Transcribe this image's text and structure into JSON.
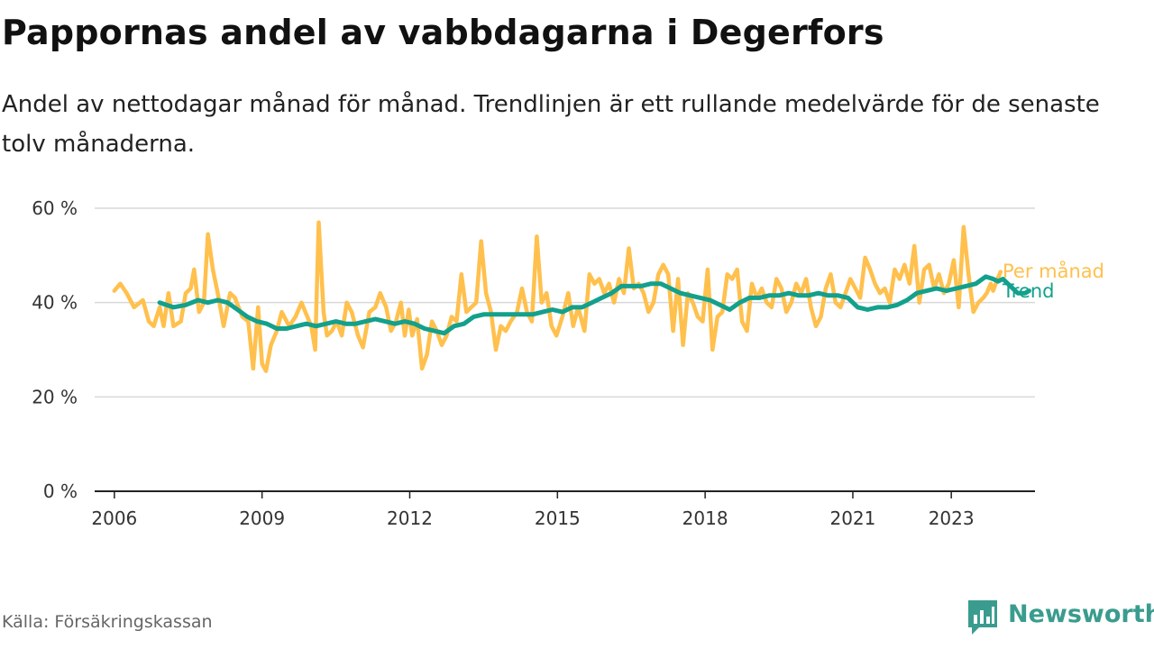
{
  "title": "Pappornas andel av vabbdagarna i Degerfors",
  "subtitle": "Andel av nettodagar månad för månad. Trendlinjen är ett rullande medelvärde för de senaste tolv månaderna.",
  "source": "Källa: Försäkringskassan",
  "brand": "Newsworthy",
  "colors": {
    "monthly": "#ffc04d",
    "trend": "#13a08c",
    "brand": "#3a9c8e",
    "grid": "#d8d8d8",
    "axis": "#222222"
  },
  "chart_data": {
    "type": "line",
    "x_unit": "year",
    "xlim": [
      2005.6,
      2024.7
    ],
    "ylim": [
      0,
      60
    ],
    "y_ticks": [
      0,
      20,
      40,
      60
    ],
    "y_tick_labels": [
      "0 %",
      "20 %",
      "40 %",
      "60 %"
    ],
    "x_ticks": [
      2006,
      2009,
      2012,
      2015,
      2018,
      2021,
      2023
    ],
    "x_tick_labels": [
      "2006",
      "2009",
      "2012",
      "2015",
      "2018",
      "2021",
      "2023"
    ],
    "grid": "horizontal",
    "legend": "labels at line ends (right)",
    "series": [
      {
        "name": "Per månad",
        "color": "#ffc04d",
        "points": [
          [
            2006.0,
            42.5
          ],
          [
            2006.12,
            44.0
          ],
          [
            2006.25,
            42.0
          ],
          [
            2006.4,
            39.0
          ],
          [
            2006.58,
            40.5
          ],
          [
            2006.7,
            36.0
          ],
          [
            2006.8,
            35.0
          ],
          [
            2006.92,
            39.0
          ],
          [
            2007.0,
            35.0
          ],
          [
            2007.1,
            42.0
          ],
          [
            2007.2,
            35.0
          ],
          [
            2007.35,
            36.0
          ],
          [
            2007.45,
            42.0
          ],
          [
            2007.55,
            43.0
          ],
          [
            2007.62,
            47.0
          ],
          [
            2007.72,
            38.0
          ],
          [
            2007.82,
            40.0
          ],
          [
            2007.9,
            54.5
          ],
          [
            2008.0,
            47.0
          ],
          [
            2008.1,
            42.0
          ],
          [
            2008.22,
            35.0
          ],
          [
            2008.35,
            42.0
          ],
          [
            2008.45,
            41.0
          ],
          [
            2008.6,
            37.0
          ],
          [
            2008.72,
            36.0
          ],
          [
            2008.82,
            26.0
          ],
          [
            2008.92,
            39.0
          ],
          [
            2009.0,
            27.0
          ],
          [
            2009.08,
            25.5
          ],
          [
            2009.18,
            31.0
          ],
          [
            2009.3,
            34.0
          ],
          [
            2009.4,
            38.0
          ],
          [
            2009.55,
            35.0
          ],
          [
            2009.68,
            37.0
          ],
          [
            2009.8,
            40.0
          ],
          [
            2009.9,
            37.5
          ],
          [
            2010.0,
            35.0
          ],
          [
            2010.08,
            30.0
          ],
          [
            2010.15,
            57.0
          ],
          [
            2010.25,
            38.0
          ],
          [
            2010.32,
            33.0
          ],
          [
            2010.42,
            34.0
          ],
          [
            2010.52,
            36.0
          ],
          [
            2010.62,
            33.0
          ],
          [
            2010.72,
            40.0
          ],
          [
            2010.82,
            38.0
          ],
          [
            2010.95,
            33.0
          ],
          [
            2011.05,
            30.5
          ],
          [
            2011.18,
            38.0
          ],
          [
            2011.3,
            39.0
          ],
          [
            2011.4,
            42.0
          ],
          [
            2011.52,
            39.0
          ],
          [
            2011.62,
            34.0
          ],
          [
            2011.72,
            36.0
          ],
          [
            2011.82,
            40.0
          ],
          [
            2011.9,
            33.0
          ],
          [
            2011.98,
            38.5
          ],
          [
            2012.05,
            33.0
          ],
          [
            2012.15,
            36.5
          ],
          [
            2012.25,
            26.0
          ],
          [
            2012.35,
            29.0
          ],
          [
            2012.45,
            36.0
          ],
          [
            2012.55,
            34.0
          ],
          [
            2012.65,
            31.0
          ],
          [
            2012.75,
            33.0
          ],
          [
            2012.85,
            37.0
          ],
          [
            2012.95,
            36.0
          ],
          [
            2013.05,
            46.0
          ],
          [
            2013.15,
            38.0
          ],
          [
            2013.25,
            39.0
          ],
          [
            2013.35,
            40.0
          ],
          [
            2013.45,
            53.0
          ],
          [
            2013.55,
            42.0
          ],
          [
            2013.65,
            38.0
          ],
          [
            2013.75,
            30.0
          ],
          [
            2013.85,
            35.0
          ],
          [
            2013.95,
            34.0
          ],
          [
            2014.05,
            36.0
          ],
          [
            2014.18,
            38.0
          ],
          [
            2014.28,
            43.0
          ],
          [
            2014.38,
            38.0
          ],
          [
            2014.48,
            36.0
          ],
          [
            2014.58,
            54.0
          ],
          [
            2014.68,
            40.0
          ],
          [
            2014.78,
            42.0
          ],
          [
            2014.88,
            35.0
          ],
          [
            2014.98,
            33.0
          ],
          [
            2015.1,
            37.0
          ],
          [
            2015.22,
            42.0
          ],
          [
            2015.32,
            35.0
          ],
          [
            2015.42,
            39.0
          ],
          [
            2015.55,
            34.0
          ],
          [
            2015.65,
            46.0
          ],
          [
            2015.75,
            44.0
          ],
          [
            2015.85,
            45.0
          ],
          [
            2015.95,
            42.0
          ],
          [
            2016.05,
            44.0
          ],
          [
            2016.15,
            40.0
          ],
          [
            2016.25,
            45.0
          ],
          [
            2016.35,
            42.0
          ],
          [
            2016.45,
            51.5
          ],
          [
            2016.55,
            43.0
          ],
          [
            2016.65,
            44.0
          ],
          [
            2016.75,
            42.0
          ],
          [
            2016.85,
            38.0
          ],
          [
            2016.95,
            40.0
          ],
          [
            2017.05,
            46.0
          ],
          [
            2017.15,
            48.0
          ],
          [
            2017.25,
            46.0
          ],
          [
            2017.35,
            34.0
          ],
          [
            2017.45,
            45.0
          ],
          [
            2017.55,
            31.0
          ],
          [
            2017.65,
            42.0
          ],
          [
            2017.75,
            40.0
          ],
          [
            2017.85,
            37.0
          ],
          [
            2017.95,
            36.0
          ],
          [
            2018.05,
            47.0
          ],
          [
            2018.15,
            30.0
          ],
          [
            2018.25,
            37.0
          ],
          [
            2018.35,
            38.0
          ],
          [
            2018.45,
            46.0
          ],
          [
            2018.55,
            45.0
          ],
          [
            2018.65,
            47.0
          ],
          [
            2018.75,
            36.0
          ],
          [
            2018.85,
            34.0
          ],
          [
            2018.95,
            44.0
          ],
          [
            2019.05,
            41.0
          ],
          [
            2019.15,
            43.0
          ],
          [
            2019.25,
            40.0
          ],
          [
            2019.35,
            39.0
          ],
          [
            2019.45,
            45.0
          ],
          [
            2019.55,
            43.0
          ],
          [
            2019.65,
            38.0
          ],
          [
            2019.75,
            40.0
          ],
          [
            2019.85,
            44.0
          ],
          [
            2019.95,
            42.0
          ],
          [
            2020.05,
            45.0
          ],
          [
            2020.15,
            39.0
          ],
          [
            2020.25,
            35.0
          ],
          [
            2020.35,
            37.0
          ],
          [
            2020.45,
            43.0
          ],
          [
            2020.55,
            46.0
          ],
          [
            2020.65,
            40.0
          ],
          [
            2020.75,
            39.0
          ],
          [
            2020.85,
            42.0
          ],
          [
            2020.95,
            45.0
          ],
          [
            2021.05,
            43.0
          ],
          [
            2021.15,
            41.0
          ],
          [
            2021.25,
            49.5
          ],
          [
            2021.35,
            47.0
          ],
          [
            2021.45,
            44.0
          ],
          [
            2021.55,
            42.0
          ],
          [
            2021.65,
            43.0
          ],
          [
            2021.75,
            40.0
          ],
          [
            2021.85,
            47.0
          ],
          [
            2021.95,
            45.0
          ],
          [
            2022.05,
            48.0
          ],
          [
            2022.15,
            44.0
          ],
          [
            2022.25,
            52.0
          ],
          [
            2022.35,
            40.0
          ],
          [
            2022.45,
            47.0
          ],
          [
            2022.55,
            48.0
          ],
          [
            2022.65,
            43.0
          ],
          [
            2022.75,
            46.0
          ],
          [
            2022.85,
            42.0
          ],
          [
            2022.95,
            44.0
          ],
          [
            2023.05,
            49.0
          ],
          [
            2023.15,
            39.0
          ],
          [
            2023.25,
            56.0
          ],
          [
            2023.35,
            46.0
          ],
          [
            2023.45,
            38.0
          ],
          [
            2023.55,
            40.0
          ],
          [
            2023.65,
            41.0
          ],
          [
            2023.72,
            42.0
          ],
          [
            2023.8,
            44.0
          ],
          [
            2023.85,
            42.5
          ],
          [
            2023.92,
            44.5
          ],
          [
            2024.0,
            46.5
          ]
        ]
      },
      {
        "name": "Trend",
        "color": "#13a08c",
        "points": [
          [
            2006.92,
            40.0
          ],
          [
            2007.2,
            39.0
          ],
          [
            2007.45,
            39.5
          ],
          [
            2007.7,
            40.5
          ],
          [
            2007.9,
            40.0
          ],
          [
            2008.1,
            40.5
          ],
          [
            2008.3,
            40.0
          ],
          [
            2008.5,
            38.5
          ],
          [
            2008.7,
            37.0
          ],
          [
            2008.9,
            36.0
          ],
          [
            2009.1,
            35.5
          ],
          [
            2009.3,
            34.5
          ],
          [
            2009.5,
            34.5
          ],
          [
            2009.7,
            35.0
          ],
          [
            2009.9,
            35.5
          ],
          [
            2010.1,
            35.0
          ],
          [
            2010.3,
            35.5
          ],
          [
            2010.5,
            36.0
          ],
          [
            2010.7,
            35.5
          ],
          [
            2010.9,
            35.5
          ],
          [
            2011.1,
            36.0
          ],
          [
            2011.3,
            36.5
          ],
          [
            2011.5,
            36.0
          ],
          [
            2011.7,
            35.5
          ],
          [
            2011.9,
            36.0
          ],
          [
            2012.1,
            35.5
          ],
          [
            2012.3,
            34.5
          ],
          [
            2012.5,
            34.0
          ],
          [
            2012.7,
            33.5
          ],
          [
            2012.9,
            35.0
          ],
          [
            2013.1,
            35.5
          ],
          [
            2013.3,
            37.0
          ],
          [
            2013.5,
            37.5
          ],
          [
            2013.7,
            37.5
          ],
          [
            2013.9,
            37.5
          ],
          [
            2014.1,
            37.5
          ],
          [
            2014.3,
            37.5
          ],
          [
            2014.5,
            37.5
          ],
          [
            2014.7,
            38.0
          ],
          [
            2014.9,
            38.5
          ],
          [
            2015.1,
            38.0
          ],
          [
            2015.3,
            39.0
          ],
          [
            2015.5,
            39.0
          ],
          [
            2015.7,
            40.0
          ],
          [
            2015.9,
            41.0
          ],
          [
            2016.1,
            42.0
          ],
          [
            2016.3,
            43.5
          ],
          [
            2016.5,
            43.5
          ],
          [
            2016.7,
            43.5
          ],
          [
            2016.9,
            44.0
          ],
          [
            2017.1,
            44.0
          ],
          [
            2017.3,
            43.0
          ],
          [
            2017.5,
            42.0
          ],
          [
            2017.7,
            41.5
          ],
          [
            2017.9,
            41.0
          ],
          [
            2018.1,
            40.5
          ],
          [
            2018.3,
            39.5
          ],
          [
            2018.5,
            38.5
          ],
          [
            2018.7,
            40.0
          ],
          [
            2018.9,
            41.0
          ],
          [
            2019.1,
            41.0
          ],
          [
            2019.3,
            41.5
          ],
          [
            2019.5,
            41.5
          ],
          [
            2019.7,
            42.0
          ],
          [
            2019.9,
            41.5
          ],
          [
            2020.1,
            41.5
          ],
          [
            2020.3,
            42.0
          ],
          [
            2020.5,
            41.5
          ],
          [
            2020.7,
            41.5
          ],
          [
            2020.9,
            41.0
          ],
          [
            2021.1,
            39.0
          ],
          [
            2021.3,
            38.5
          ],
          [
            2021.5,
            39.0
          ],
          [
            2021.7,
            39.0
          ],
          [
            2021.9,
            39.5
          ],
          [
            2022.1,
            40.5
          ],
          [
            2022.3,
            42.0
          ],
          [
            2022.5,
            42.5
          ],
          [
            2022.7,
            43.0
          ],
          [
            2022.9,
            42.5
          ],
          [
            2023.1,
            43.0
          ],
          [
            2023.3,
            43.5
          ],
          [
            2023.5,
            44.0
          ],
          [
            2023.7,
            45.5
          ],
          [
            2023.85,
            45.0
          ],
          [
            2023.95,
            44.5
          ],
          [
            2024.05,
            45.0
          ],
          [
            2024.2,
            43.5
          ],
          [
            2024.35,
            42.0
          ],
          [
            2024.5,
            42.0
          ],
          [
            2024.58,
            42.5
          ]
        ]
      }
    ]
  }
}
